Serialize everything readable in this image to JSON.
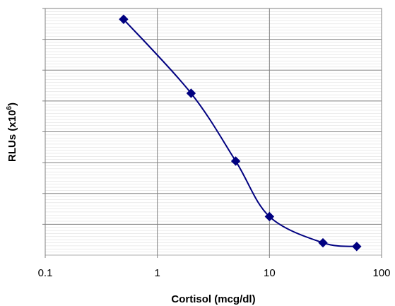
{
  "chart_data": {
    "type": "scatter",
    "title": "",
    "xlabel": "Cortisol (mcg/dl)",
    "ylabel": "RLUs (x10",
    "ylabel_sup": "6",
    "ylabel_close": ")",
    "x_scale": "log",
    "xlim": [
      0.1,
      100
    ],
    "x_ticks": [
      "0.1",
      "1",
      "10",
      "100"
    ],
    "x_tick_values": [
      0.1,
      1,
      10,
      100
    ],
    "ylim": [
      0,
      8
    ],
    "y_gridlines": [
      1,
      2,
      3,
      4,
      5,
      6,
      7,
      8
    ],
    "grid": true,
    "legend": "none",
    "marker": "diamond",
    "line": "smooth",
    "colors": {
      "series": "#000080",
      "plot_border": "#808080",
      "grid": "#808080",
      "minor_grid": "#d8d8d8"
    },
    "series": [
      {
        "x": [
          0.5,
          2,
          5,
          10,
          30,
          60
        ],
        "y": [
          7.65,
          5.25,
          3.05,
          1.25,
          0.4,
          0.28
        ]
      }
    ]
  }
}
